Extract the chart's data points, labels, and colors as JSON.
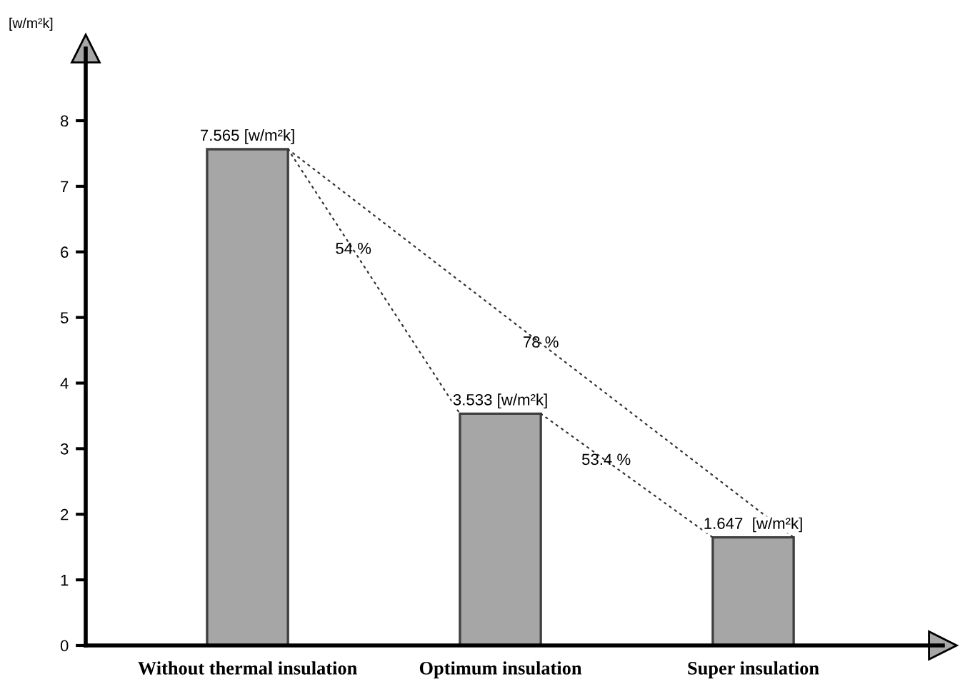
{
  "chart_data": {
    "type": "bar",
    "ylabel": "[w/m²k]",
    "categories": [
      "Without thermal insulation",
      "Optimum insulation",
      "Super insulation"
    ],
    "values": [
      7.565,
      3.533,
      1.647
    ],
    "color": "#a6a6a6",
    "value_labels": [
      "7.565 [w/m²k]",
      "3.533 [w/m²k]",
      "1.647  [w/m²k]"
    ],
    "annotations": [
      "54 %",
      "78 %",
      "53.4 %"
    ],
    "ylim": [
      0,
      9.1
    ],
    "yticks": [
      0,
      1,
      2,
      3,
      4,
      5,
      6,
      7,
      8
    ],
    "grid": false,
    "legend": false
  }
}
